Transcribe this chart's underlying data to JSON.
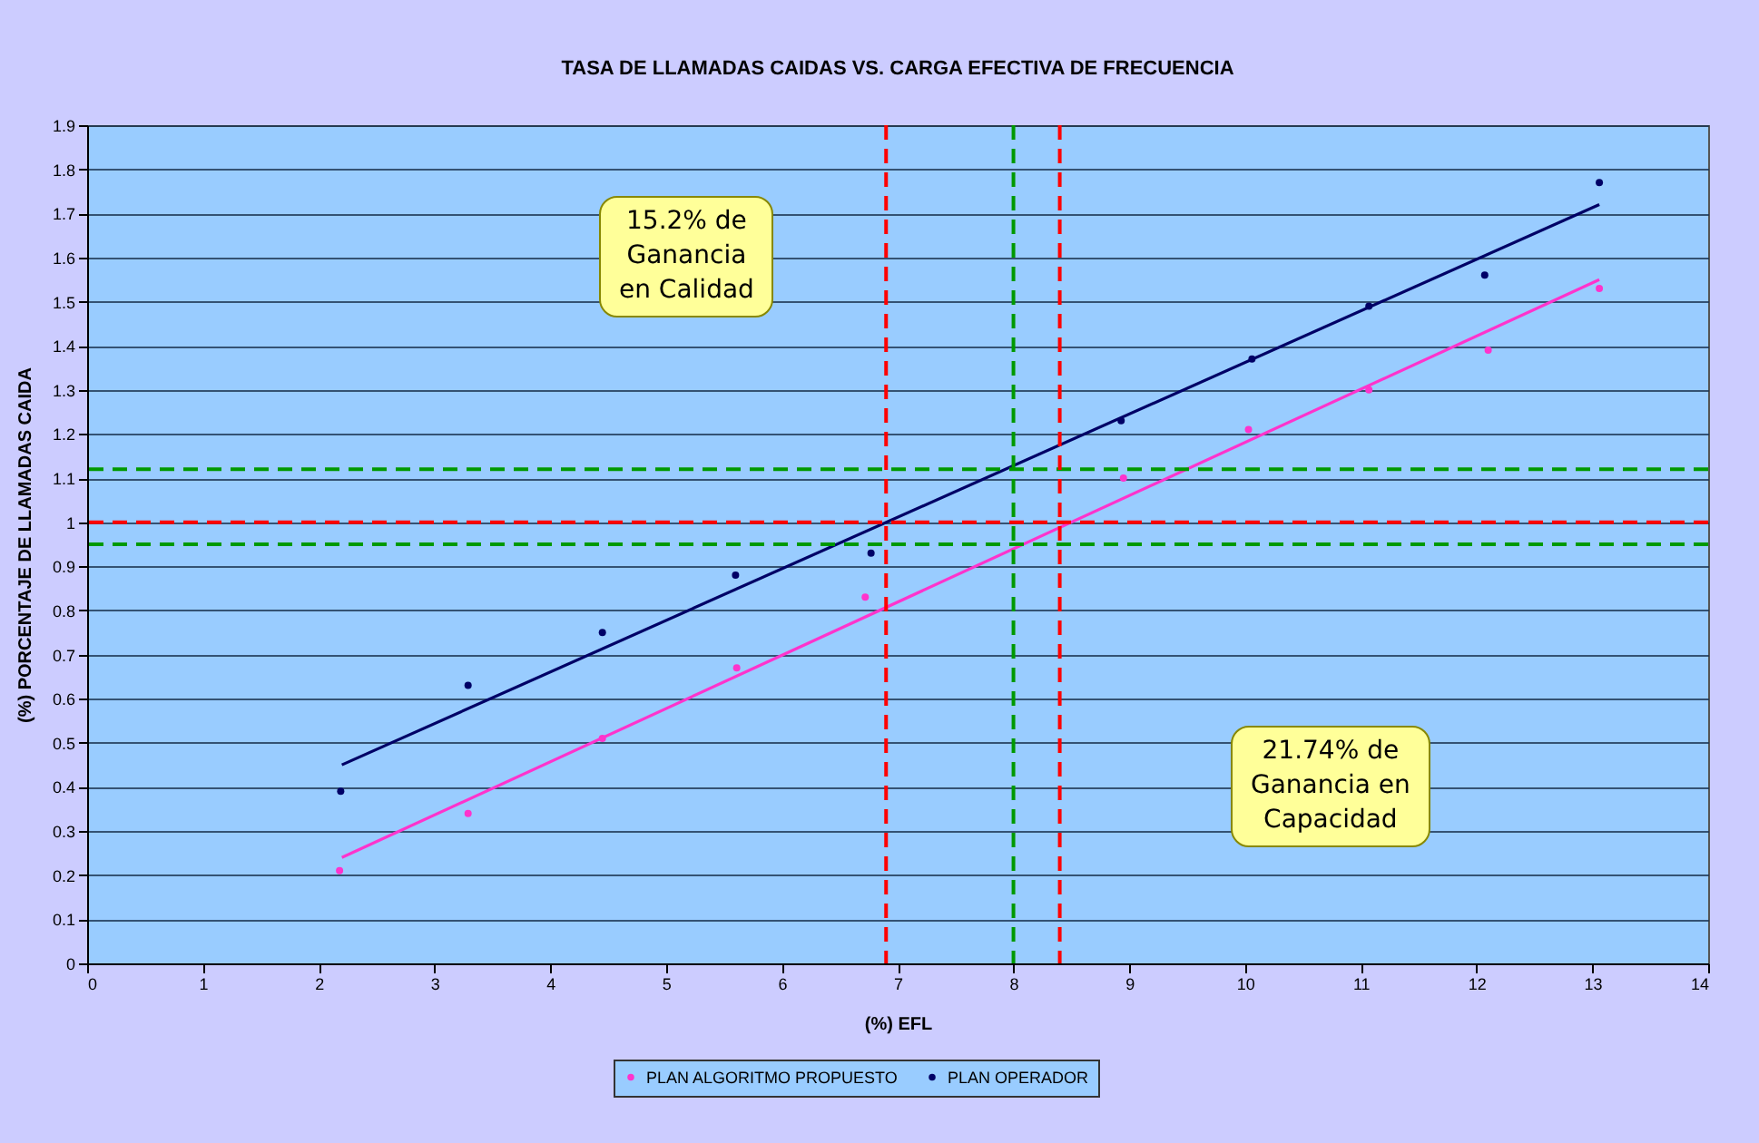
{
  "chart_data": {
    "type": "scatter",
    "title": "TASA DE LLAMADAS CAIDAS VS. CARGA EFECTIVA DE FRECUENCIA",
    "xlabel": "(%) EFL",
    "ylabel": "(%) PORCENTAJE DE LLAMADAS CAIDA",
    "series": [
      {
        "name": "PLAN ALGORITMO PROPUESTO",
        "color": "#ff33cc",
        "x": [
          2.18,
          3.29,
          4.45,
          5.61,
          6.72,
          8.95,
          10.03,
          11.07,
          12.1,
          13.06
        ],
        "values": [
          0.21,
          0.34,
          0.51,
          0.67,
          0.83,
          1.1,
          1.21,
          1.3,
          1.39,
          1.53
        ]
      },
      {
        "name": "PLAN OPERADOR",
        "color": "#000066",
        "x": [
          2.19,
          3.29,
          4.45,
          5.6,
          6.77,
          8.93,
          10.06,
          11.07,
          12.07,
          13.06
        ],
        "values": [
          0.39,
          0.63,
          0.75,
          0.88,
          0.93,
          1.23,
          1.37,
          1.49,
          1.56,
          1.77
        ]
      },
      {
        "type": "line",
        "marker": "none",
        "color": "#ff33cc",
        "x": [
          2.2,
          13.06
        ],
        "values": [
          0.24,
          1.55
        ]
      },
      {
        "type": "line",
        "marker": "none",
        "color": "#000066",
        "x": [
          2.2,
          13.06
        ],
        "values": [
          0.45,
          1.72
        ]
      }
    ],
    "xlim": [
      0,
      14
    ],
    "xticks": [
      0,
      1,
      2,
      3,
      4,
      5,
      6,
      7,
      8,
      9,
      10,
      11,
      12,
      13,
      14
    ],
    "ylim": [
      0,
      1.9
    ],
    "yticks": [
      0,
      0.1,
      0.2,
      0.3,
      0.4,
      0.5,
      0.6,
      0.7,
      0.8,
      0.9,
      1,
      1.1,
      1.2,
      1.3,
      1.4,
      1.5,
      1.6,
      1.7,
      1.8,
      1.9
    ],
    "ref_lines": [
      {
        "axis": "y",
        "value": 1,
        "color": "#ff0000",
        "line_style": "dashed"
      },
      {
        "axis": "x",
        "value": 8,
        "color": "#009900",
        "line_style": "dashed"
      },
      {
        "axis": "y",
        "value": 1.12,
        "color": "#009900",
        "line_style": "dashed"
      },
      {
        "axis": "y",
        "value": 0.95,
        "color": "#009900",
        "line_style": "dashed"
      },
      {
        "axis": "x",
        "value": 6.9,
        "color": "#ff0000",
        "line_style": "dashed"
      },
      {
        "axis": "x",
        "value": 8.4,
        "color": "#ff0000",
        "line_style": "dashed"
      }
    ],
    "annotations": [
      "15.2% de\nGanancia\nen Calidad",
      "21.74% de\nGanancia en\nCapacidad"
    ],
    "grid": "y",
    "legend": "bottom",
    "marker": "circle"
  }
}
